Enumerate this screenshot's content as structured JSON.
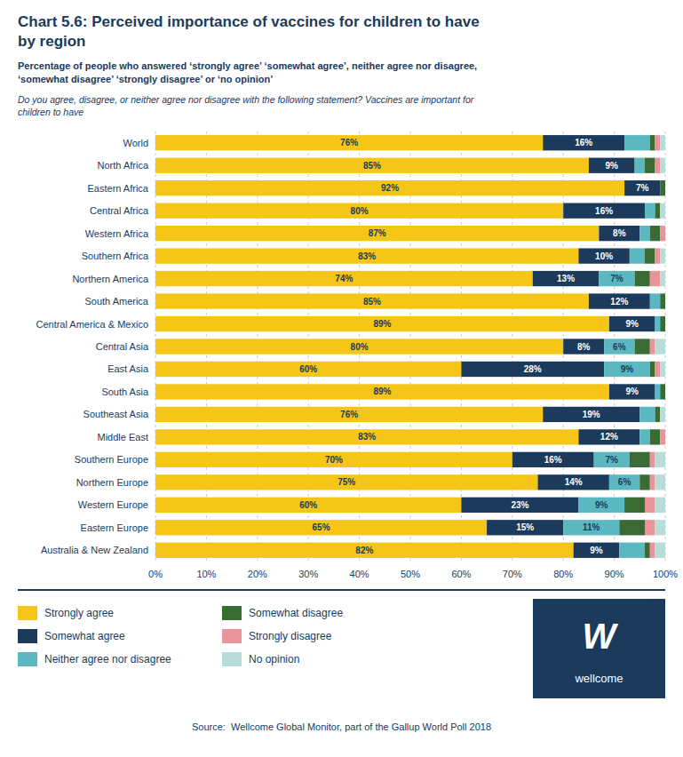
{
  "chart_data": {
    "type": "bar",
    "orientation": "horizontal",
    "stacked": true,
    "grid": true,
    "legend": "bottom",
    "data_labels": true,
    "title": [
      "Chart 5.6: Perceived importance of vaccines for children to have",
      "by region"
    ],
    "subtitle": [
      "Percentage of people who answered ‘strongly agree’ ‘somewhat agree’, neither agree nor disagree,",
      "‘somewhat disagree’ ‘strongly disagree’ or ‘no opinion’"
    ],
    "question": [
      "Do you agree, disagree, or neither agree nor disagree with the following statement? Vaccines are important for",
      "children to have"
    ],
    "source": "Source:  Wellcome Global Monitor, part of the Gallup World Poll 2018",
    "logo": [
      "W",
      "wellcome"
    ],
    "categories": [
      "World",
      "North Africa",
      "Eastern Africa",
      "Central Africa",
      "Western Africa",
      "Southern Africa",
      "Northern America",
      "South America",
      "Central America & Mexico",
      "Central Asia",
      "East Asia",
      "South Asia",
      "Southeast Asia",
      "Middle East",
      "Southern Europe",
      "Northern Europe",
      "Western Europe",
      "Eastern Europe",
      "Australia & New Zealand"
    ],
    "series": [
      {
        "name": "Strongly agree",
        "color": "#F5C518",
        "values": [
          76,
          85,
          92,
          80,
          87,
          83,
          74,
          85,
          89,
          80,
          60,
          89,
          76,
          83,
          70,
          75,
          60,
          65,
          82
        ],
        "value_labels": [
          "76%",
          "85%",
          "92%",
          "80%",
          "87%",
          "83%",
          "74%",
          "85%",
          "89%",
          "80%",
          "60%",
          "89%",
          "76%",
          "83%",
          "70%",
          "75%",
          "60%",
          "65%",
          "82%"
        ]
      },
      {
        "name": "Somewhat agree",
        "color": "#1B3A5C",
        "values": [
          16,
          9,
          7,
          16,
          8,
          10,
          13,
          12,
          9,
          8,
          28,
          9,
          19,
          12,
          16,
          14,
          23,
          15,
          9
        ],
        "value_labels": [
          "16%",
          "9%",
          "7%",
          "16%",
          "8%",
          "10%",
          "13%",
          "12%",
          "9%",
          "8%",
          "28%",
          "9%",
          "19%",
          "12%",
          "16%",
          "14%",
          "23%",
          "15%",
          "9%"
        ]
      },
      {
        "name": "Neither agree nor disagree",
        "color": "#5BB8C1",
        "values": [
          5,
          2,
          0,
          2,
          2,
          3,
          7,
          2,
          1,
          6,
          9,
          1,
          3,
          2,
          7,
          6,
          9,
          11,
          5
        ],
        "value_labels": [
          null,
          null,
          null,
          null,
          null,
          null,
          "7%",
          null,
          null,
          "6%",
          "9%",
          null,
          null,
          null,
          "7%",
          "6%",
          "9%",
          "11%",
          null
        ]
      },
      {
        "name": "Somewhat disagree",
        "color": "#3A6B35",
        "values": [
          1,
          2,
          1,
          1,
          2,
          2,
          3,
          1,
          1,
          3,
          1,
          1,
          1,
          2,
          4,
          2,
          4,
          5,
          1
        ]
      },
      {
        "name": "Strongly disagree",
        "color": "#E8949A",
        "values": [
          1,
          1,
          0,
          0,
          1,
          1,
          2,
          0,
          0,
          1,
          1,
          0,
          0,
          1,
          1,
          1,
          2,
          2,
          1
        ]
      },
      {
        "name": "No opinion",
        "color": "#B8DDD9",
        "values": [
          1,
          1,
          0,
          1,
          0,
          1,
          1,
          0,
          0,
          2,
          1,
          0,
          1,
          0,
          2,
          2,
          2,
          2,
          2
        ]
      }
    ],
    "xlim": [
      0,
      100
    ],
    "xticks": [
      {
        "value": 0,
        "label": "0%"
      },
      {
        "value": 10,
        "label": "10%"
      },
      {
        "value": 20,
        "label": "20%"
      },
      {
        "value": 30,
        "label": "30%"
      },
      {
        "value": 40,
        "label": "40%"
      },
      {
        "value": 50,
        "label": "50%"
      },
      {
        "value": 60,
        "label": "60%"
      },
      {
        "value": 70,
        "label": "70%"
      },
      {
        "value": 80,
        "label": "80%"
      },
      {
        "value": 90,
        "label": "90%"
      },
      {
        "value": 100,
        "label": "100%"
      }
    ]
  }
}
